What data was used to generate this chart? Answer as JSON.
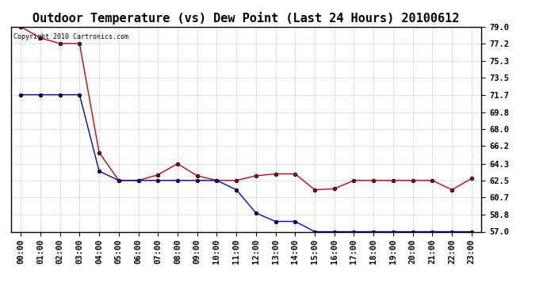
{
  "title": "Outdoor Temperature (vs) Dew Point (Last 24 Hours) 20100612",
  "copyright_text": "Copyright 2010 Cartronics.com",
  "x_labels": [
    "00:00",
    "01:00",
    "02:00",
    "03:00",
    "04:00",
    "05:00",
    "06:00",
    "07:00",
    "08:00",
    "09:00",
    "10:00",
    "11:00",
    "12:00",
    "13:00",
    "14:00",
    "15:00",
    "16:00",
    "17:00",
    "18:00",
    "19:00",
    "20:00",
    "21:00",
    "22:00",
    "23:00"
  ],
  "temp_data": [
    79.0,
    77.8,
    77.2,
    77.2,
    65.5,
    62.5,
    62.5,
    63.1,
    64.3,
    63.0,
    62.5,
    62.5,
    63.0,
    63.2,
    63.2,
    61.5,
    61.6,
    62.5,
    62.5,
    62.5,
    62.5,
    62.5,
    61.5,
    62.7
  ],
  "dew_data": [
    71.7,
    71.7,
    71.7,
    71.7,
    63.5,
    62.5,
    62.5,
    62.5,
    62.5,
    62.5,
    62.5,
    61.5,
    59.0,
    58.1,
    58.1,
    57.0,
    57.0,
    57.0,
    57.0,
    57.0,
    57.0,
    57.0,
    57.0,
    57.0
  ],
  "temp_color": "#cc0000",
  "dew_color": "#0000cc",
  "ylim_min": 57.0,
  "ylim_max": 79.0,
  "yticks": [
    79.0,
    77.2,
    75.3,
    73.5,
    71.7,
    69.8,
    68.0,
    66.2,
    64.3,
    62.5,
    60.7,
    58.8,
    57.0
  ],
  "ytick_labels": [
    "79.0",
    "77.2",
    "75.3",
    "73.5",
    "71.7",
    "69.8",
    "68.0",
    "66.2",
    "64.3",
    "62.5",
    "60.7",
    "58.8",
    "57.0"
  ],
  "background_color": "#ffffff",
  "plot_bg_color": "#ffffff",
  "grid_color": "#aaaaaa",
  "title_fontsize": 11,
  "tick_fontsize": 7.5,
  "marker": "o",
  "markersize": 3
}
